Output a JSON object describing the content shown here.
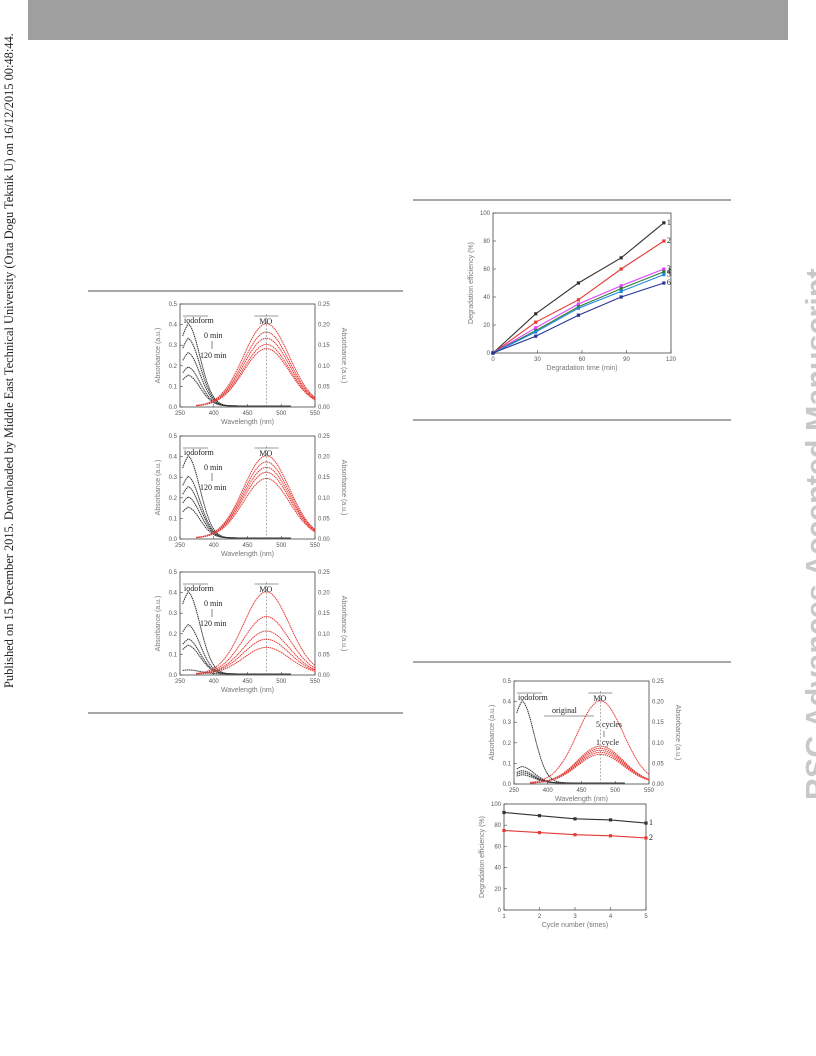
{
  "sidebar_note": "Published on 15 December 2015. Downloaded by Middle East Technical University (Orta Dogu Teknik U) on 16/12/2015 00:48:44.",
  "watermark": "RSC Advances Accepted Manuscript",
  "colors": {
    "header": "#9f9f9f",
    "rule": "#a8a8a8",
    "black_series": "#333333",
    "red_series": "#e53935"
  },
  "spectra_labels": {
    "iodoform": "iodoform",
    "mo": "MO",
    "t0": "0 min",
    "t120": "120 min"
  },
  "cycle_labels": {
    "original": "original",
    "five": "5 cycles",
    "one": "1 cycle"
  },
  "chart_data": [
    {
      "id": "spectra-a",
      "type": "line",
      "xlabel": "Wavelength (nm)",
      "ylabel": "Absorbance (a.u.)",
      "ylabel_right": "Absorbance (a.u.)",
      "x_ticks": [
        "250",
        "400",
        "450",
        "500",
        "550"
      ],
      "y_ticks": [
        "0.0",
        "0.1",
        "0.2",
        "0.3",
        "0.4",
        "0.5"
      ],
      "y2_ticks": [
        "0.00",
        "0.05",
        "0.10",
        "0.15",
        "0.20",
        "0.25"
      ],
      "black_peaks": [
        0.4,
        0.33,
        0.26,
        0.19,
        0.15
      ],
      "red_peaks": [
        0.2,
        0.18,
        0.165,
        0.15,
        0.14
      ]
    },
    {
      "id": "spectra-b",
      "type": "line",
      "xlabel": "Wavelength (nm)",
      "ylabel": "Absorbance (a.u.)",
      "ylabel_right": "Absorbance (a.u.)",
      "x_ticks": [
        "250",
        "400",
        "450",
        "500",
        "550"
      ],
      "y_ticks": [
        "0.0",
        "0.1",
        "0.2",
        "0.3",
        "0.4",
        "0.5"
      ],
      "y2_ticks": [
        "0.00",
        "0.05",
        "0.10",
        "0.15",
        "0.20",
        "0.25"
      ],
      "black_peaks": [
        0.4,
        0.3,
        0.25,
        0.2,
        0.15
      ],
      "red_peaks": [
        0.2,
        0.185,
        0.172,
        0.16,
        0.145
      ]
    },
    {
      "id": "spectra-c",
      "type": "line",
      "xlabel": "Wavelength (nm)",
      "ylabel": "Absorbance (a.u.)",
      "ylabel_right": "Absorbance (a.u.)",
      "x_ticks": [
        "250",
        "400",
        "450",
        "500",
        "550"
      ],
      "y_ticks": [
        "0.0",
        "0.1",
        "0.2",
        "0.3",
        "0.4",
        "0.5"
      ],
      "y2_ticks": [
        "0.00",
        "0.05",
        "0.10",
        "0.15",
        "0.20",
        "0.25"
      ],
      "black_peaks": [
        0.4,
        0.24,
        0.17,
        0.14,
        0.02
      ],
      "red_peaks": [
        0.2,
        0.14,
        0.105,
        0.085,
        0.065
      ]
    },
    {
      "id": "degradation-efficiency",
      "type": "line",
      "xlabel": "Degradation time (min)",
      "ylabel": "Degradation efficiency (%)",
      "x": [
        0,
        30,
        60,
        90,
        120
      ],
      "xlim": [
        0,
        125
      ],
      "ylim": [
        0,
        100
      ],
      "x_ticks": [
        "0",
        "30",
        "60",
        "90",
        "120"
      ],
      "y_ticks": [
        "0",
        "20",
        "40",
        "60",
        "80",
        "100"
      ],
      "series": [
        {
          "name": "1",
          "color": "#333333",
          "values": [
            0,
            28,
            50,
            68,
            93
          ]
        },
        {
          "name": "2",
          "color": "#e53935",
          "values": [
            0,
            22,
            38,
            60,
            80
          ]
        },
        {
          "name": "3",
          "color": "#e040fb",
          "values": [
            0,
            18,
            35,
            48,
            60
          ]
        },
        {
          "name": "4",
          "color": "#2e7d32",
          "values": [
            0,
            16,
            33,
            46,
            58
          ]
        },
        {
          "name": "5",
          "color": "#1e88e5",
          "values": [
            0,
            15,
            32,
            44,
            56
          ]
        },
        {
          "name": "6",
          "color": "#283593",
          "values": [
            0,
            12,
            27,
            40,
            50
          ]
        }
      ]
    },
    {
      "id": "cycle-spectra",
      "type": "line",
      "xlabel": "Wavelength (nm)",
      "ylabel": "Absorbance (a.u.)",
      "ylabel_right": "Absorbance (a.u.)",
      "x_ticks": [
        "250",
        "400",
        "450",
        "500",
        "550"
      ],
      "y_ticks": [
        "0.0",
        "0.1",
        "0.2",
        "0.3",
        "0.4",
        "0.5"
      ],
      "y2_ticks": [
        "0.00",
        "0.05",
        "0.10",
        "0.15",
        "0.20",
        "0.25"
      ],
      "black_peaks": [
        0.4,
        0.08,
        0.06,
        0.05,
        0.04
      ],
      "red_peaks": [
        0.2,
        0.09,
        0.085,
        0.08,
        0.075,
        0.07
      ]
    },
    {
      "id": "cycle-efficiency",
      "type": "line",
      "xlabel": "Cycle number (times)",
      "ylabel": "Degradation efficiency (%)",
      "x": [
        1,
        2,
        3,
        4,
        5
      ],
      "xlim": [
        1,
        5
      ],
      "ylim": [
        0,
        100
      ],
      "x_ticks": [
        "1",
        "2",
        "3",
        "4",
        "5"
      ],
      "y_ticks": [
        "0",
        "20",
        "40",
        "60",
        "80",
        "100"
      ],
      "series": [
        {
          "name": "1",
          "color": "#333333",
          "values": [
            92,
            89,
            86,
            85,
            82
          ]
        },
        {
          "name": "2",
          "color": "#e53935",
          "values": [
            75,
            73,
            71,
            70,
            68
          ]
        }
      ]
    }
  ]
}
